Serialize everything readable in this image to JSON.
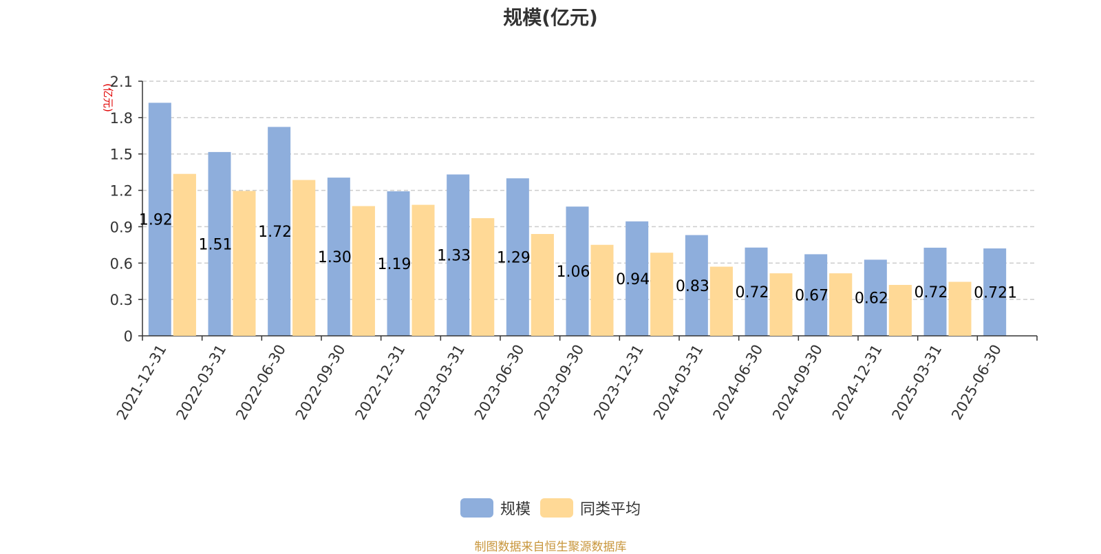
{
  "colors": {
    "series1": "#8eaedc",
    "series2": "#ffd996",
    "unit": "#e00000",
    "source": "#c8963c"
  },
  "legend": {
    "s1": "规模",
    "s2": "同类平均"
  },
  "unit_label": "(亿元)",
  "source_text": "制图数据来自恒生聚源数据库",
  "chart_data": {
    "type": "bar",
    "title": "规模(亿元)",
    "xlabel": "",
    "ylabel": "(亿元)",
    "ylim": [
      0,
      2.1
    ],
    "yticks": [
      0,
      0.3,
      0.6,
      0.9,
      1.2,
      1.5,
      1.8,
      2.1
    ],
    "ytick_labels": [
      "0",
      "0.3",
      "0.6",
      "0.9",
      "1.2",
      "1.5",
      "1.8",
      "2.1"
    ],
    "grid": true,
    "legend_position": "bottom-center",
    "categories": [
      "2021-12-31",
      "2022-03-31",
      "2022-06-30",
      "2022-09-30",
      "2022-12-31",
      "2023-03-31",
      "2023-06-30",
      "2023-09-30",
      "2023-12-31",
      "2024-03-31",
      "2024-06-30",
      "2024-09-30",
      "2024-12-31",
      "2025-03-31",
      "2025-06-30"
    ],
    "series": [
      {
        "name": "规模",
        "values": [
          1.922,
          1.516,
          1.723,
          1.305,
          1.192,
          1.331,
          1.299,
          1.066,
          0.944,
          0.831,
          0.728,
          0.673,
          0.628,
          0.727,
          0.721
        ],
        "labels": [
          "1.922",
          "1.516",
          "1.723",
          "1.305",
          "1.192",
          "1.331",
          "1.299",
          "1.066",
          "0.944",
          "0.831",
          "0.728",
          "0.673",
          "0.628",
          "0.727",
          "0.721"
        ]
      },
      {
        "name": "同类平均",
        "values": [
          1.335,
          1.195,
          1.285,
          1.07,
          1.08,
          0.97,
          0.84,
          0.75,
          0.685,
          0.57,
          0.515,
          0.515,
          0.42,
          0.445,
          null
        ]
      }
    ]
  }
}
